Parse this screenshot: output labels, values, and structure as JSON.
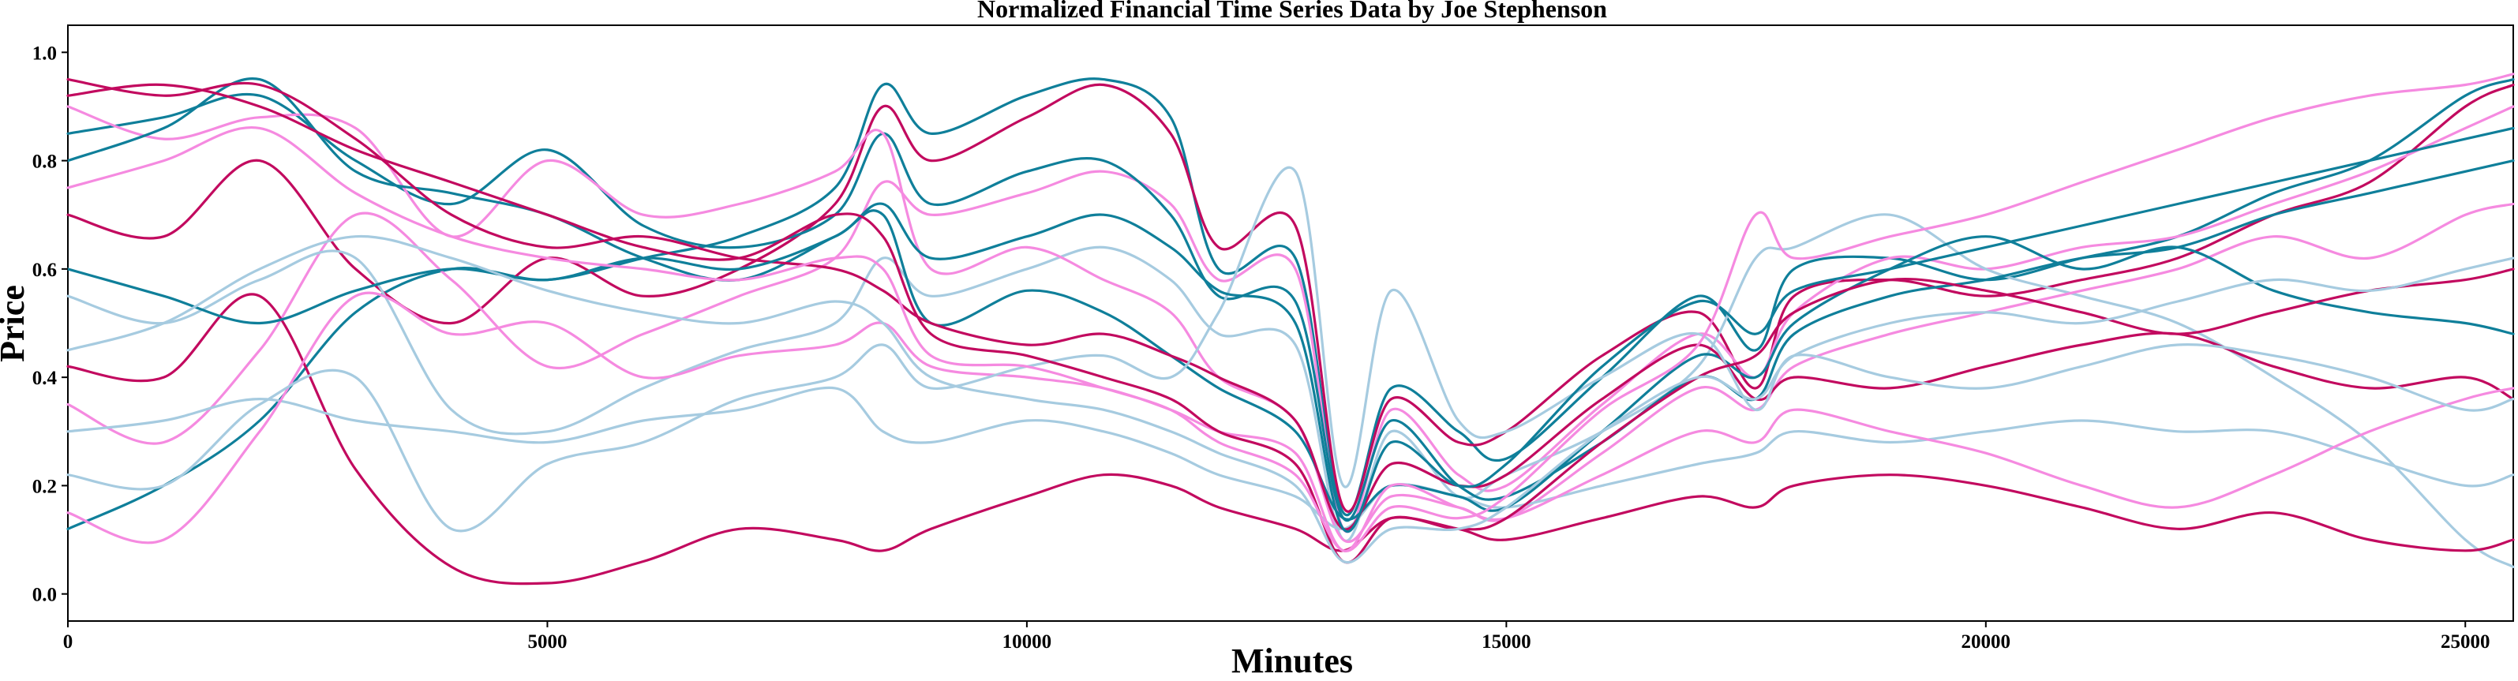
{
  "chart_data": {
    "type": "line",
    "title": "Normalized Financial Time Series Data by Joe Stephenson",
    "xlabel": "Minutes",
    "ylabel": "Price",
    "xlim": [
      0,
      25500
    ],
    "ylim": [
      -0.05,
      1.05
    ],
    "x_ticks": [
      0,
      5000,
      10000,
      15000,
      20000,
      25000
    ],
    "y_ticks": [
      0.0,
      0.2,
      0.4,
      0.6,
      0.8,
      1.0
    ],
    "x_tick_labels": [
      "0",
      "5000",
      "10000",
      "15000",
      "20000",
      "25000"
    ],
    "y_tick_labels": [
      "0.0",
      "0.2",
      "0.4",
      "0.6",
      "0.8",
      "1.0"
    ],
    "grid": false,
    "legend": "none",
    "colors": [
      "#0f7f9a",
      "#c20a5f",
      "#f58ae0",
      "#a6cbe0"
    ],
    "x": [
      0,
      1000,
      2000,
      3000,
      4000,
      5000,
      6000,
      7000,
      8000,
      8500,
      9000,
      10000,
      10800,
      11500,
      12000,
      12800,
      13300,
      13800,
      14500,
      15000,
      16000,
      17000,
      17600,
      18000,
      19000,
      20000,
      21000,
      22000,
      23000,
      24000,
      25000,
      25500
    ],
    "series": [
      {
        "values": [
          0.12,
          0.2,
          0.32,
          0.52,
          0.6,
          0.58,
          0.62,
          0.66,
          0.75,
          0.94,
          0.85,
          0.92,
          0.95,
          0.88,
          0.6,
          0.62,
          0.15,
          0.38,
          0.3,
          0.25,
          0.4,
          0.55,
          0.45,
          0.6,
          0.62,
          0.58,
          0.62,
          0.66,
          0.74,
          0.8,
          0.92,
          0.95
        ]
      },
      {
        "values": [
          0.7,
          0.66,
          0.8,
          0.6,
          0.5,
          0.62,
          0.55,
          0.6,
          0.72,
          0.9,
          0.8,
          0.88,
          0.94,
          0.85,
          0.64,
          0.68,
          0.16,
          0.36,
          0.28,
          0.3,
          0.44,
          0.52,
          0.38,
          0.55,
          0.58,
          0.55,
          0.58,
          0.62,
          0.7,
          0.76,
          0.9,
          0.94
        ]
      },
      {
        "values": [
          0.35,
          0.28,
          0.45,
          0.7,
          0.58,
          0.42,
          0.48,
          0.55,
          0.62,
          0.76,
          0.7,
          0.74,
          0.78,
          0.72,
          0.58,
          0.6,
          0.12,
          0.34,
          0.22,
          0.2,
          0.35,
          0.48,
          0.4,
          0.52,
          0.62,
          0.6,
          0.64,
          0.66,
          0.72,
          0.78,
          0.86,
          0.9
        ]
      },
      {
        "values": [
          0.55,
          0.5,
          0.58,
          0.62,
          0.34,
          0.3,
          0.38,
          0.45,
          0.5,
          0.62,
          0.55,
          0.6,
          0.64,
          0.58,
          0.48,
          0.46,
          0.1,
          0.3,
          0.18,
          0.22,
          0.3,
          0.42,
          0.62,
          0.64,
          0.7,
          0.6,
          0.55,
          0.5,
          0.4,
          0.28,
          0.1,
          0.05
        ]
      },
      {
        "values": [
          0.85,
          0.88,
          0.92,
          0.8,
          0.72,
          0.82,
          0.68,
          0.64,
          0.7,
          0.85,
          0.72,
          0.78,
          0.8,
          0.7,
          0.55,
          0.54,
          0.14,
          0.32,
          0.2,
          0.18,
          0.28,
          0.4,
          0.36,
          0.48,
          0.55,
          0.58,
          0.62,
          0.64,
          0.7,
          0.74,
          0.78,
          0.8
        ]
      },
      {
        "values": [
          0.42,
          0.4,
          0.55,
          0.23,
          0.05,
          0.02,
          0.06,
          0.12,
          0.1,
          0.08,
          0.12,
          0.18,
          0.22,
          0.2,
          0.16,
          0.12,
          0.08,
          0.14,
          0.12,
          0.1,
          0.14,
          0.18,
          0.16,
          0.2,
          0.22,
          0.2,
          0.16,
          0.12,
          0.15,
          0.1,
          0.08,
          0.1
        ]
      },
      {
        "values": [
          0.9,
          0.84,
          0.88,
          0.86,
          0.66,
          0.8,
          0.7,
          0.72,
          0.78,
          0.85,
          0.6,
          0.64,
          0.58,
          0.52,
          0.4,
          0.32,
          0.1,
          0.18,
          0.16,
          0.14,
          0.26,
          0.38,
          0.34,
          0.42,
          0.48,
          0.52,
          0.56,
          0.6,
          0.66,
          0.62,
          0.7,
          0.72
        ]
      },
      {
        "values": [
          0.3,
          0.32,
          0.36,
          0.32,
          0.3,
          0.28,
          0.32,
          0.34,
          0.38,
          0.3,
          0.28,
          0.32,
          0.3,
          0.26,
          0.22,
          0.18,
          0.12,
          0.2,
          0.18,
          0.16,
          0.2,
          0.24,
          0.26,
          0.3,
          0.28,
          0.3,
          0.32,
          0.3,
          0.3,
          0.25,
          0.2,
          0.22
        ]
      },
      {
        "values": [
          0.8,
          0.86,
          0.95,
          0.78,
          0.74,
          0.7,
          0.62,
          0.58,
          0.66,
          0.7,
          0.5,
          0.56,
          0.52,
          0.44,
          0.38,
          0.3,
          0.14,
          0.2,
          0.18,
          0.16,
          0.3,
          0.44,
          0.4,
          0.5,
          0.6,
          0.66,
          0.6,
          0.64,
          0.56,
          0.52,
          0.5,
          0.48
        ]
      },
      {
        "values": [
          0.95,
          0.92,
          0.94,
          0.84,
          0.7,
          0.64,
          0.66,
          0.62,
          0.6,
          0.56,
          0.5,
          0.46,
          0.48,
          0.44,
          0.4,
          0.32,
          0.12,
          0.24,
          0.2,
          0.22,
          0.36,
          0.46,
          0.36,
          0.4,
          0.38,
          0.42,
          0.46,
          0.48,
          0.42,
          0.38,
          0.4,
          0.36
        ]
      },
      {
        "values": [
          0.15,
          0.1,
          0.3,
          0.55,
          0.48,
          0.5,
          0.4,
          0.44,
          0.46,
          0.5,
          0.42,
          0.4,
          0.38,
          0.34,
          0.3,
          0.26,
          0.08,
          0.2,
          0.16,
          0.14,
          0.22,
          0.3,
          0.28,
          0.34,
          0.3,
          0.26,
          0.2,
          0.16,
          0.22,
          0.3,
          0.36,
          0.38
        ]
      },
      {
        "values": [
          0.22,
          0.2,
          0.35,
          0.4,
          0.12,
          0.24,
          0.28,
          0.36,
          0.4,
          0.46,
          0.38,
          0.42,
          0.44,
          0.4,
          0.52,
          0.78,
          0.2,
          0.56,
          0.32,
          0.3,
          0.4,
          0.48,
          0.34,
          0.44,
          0.4,
          0.38,
          0.42,
          0.46,
          0.44,
          0.4,
          0.34,
          0.36
        ]
      },
      {
        "values": [
          0.6,
          0.55,
          0.5,
          0.56,
          0.6,
          0.58,
          0.62,
          0.6,
          0.66,
          0.72,
          0.62,
          0.66,
          0.7,
          0.64,
          0.56,
          0.5,
          0.12,
          0.28,
          0.2,
          0.24,
          0.42,
          0.54,
          0.48,
          0.56,
          0.6,
          0.64,
          0.68,
          0.72,
          0.76,
          0.8,
          0.84,
          0.86
        ]
      },
      {
        "values": [
          0.92,
          0.94,
          0.9,
          0.82,
          0.76,
          0.7,
          0.64,
          0.62,
          0.7,
          0.66,
          0.48,
          0.44,
          0.4,
          0.36,
          0.3,
          0.24,
          0.06,
          0.14,
          0.12,
          0.14,
          0.28,
          0.4,
          0.44,
          0.52,
          0.58,
          0.56,
          0.52,
          0.48,
          0.52,
          0.56,
          0.58,
          0.6
        ]
      },
      {
        "values": [
          0.75,
          0.8,
          0.86,
          0.74,
          0.66,
          0.62,
          0.6,
          0.58,
          0.62,
          0.6,
          0.44,
          0.42,
          0.38,
          0.34,
          0.28,
          0.22,
          0.08,
          0.16,
          0.14,
          0.18,
          0.34,
          0.46,
          0.7,
          0.62,
          0.66,
          0.7,
          0.76,
          0.82,
          0.88,
          0.92,
          0.94,
          0.96
        ]
      },
      {
        "values": [
          0.45,
          0.5,
          0.6,
          0.66,
          0.62,
          0.56,
          0.52,
          0.5,
          0.54,
          0.5,
          0.4,
          0.36,
          0.34,
          0.3,
          0.26,
          0.2,
          0.06,
          0.12,
          0.12,
          0.16,
          0.3,
          0.4,
          0.36,
          0.44,
          0.5,
          0.52,
          0.5,
          0.54,
          0.58,
          0.56,
          0.6,
          0.62
        ]
      }
    ]
  }
}
